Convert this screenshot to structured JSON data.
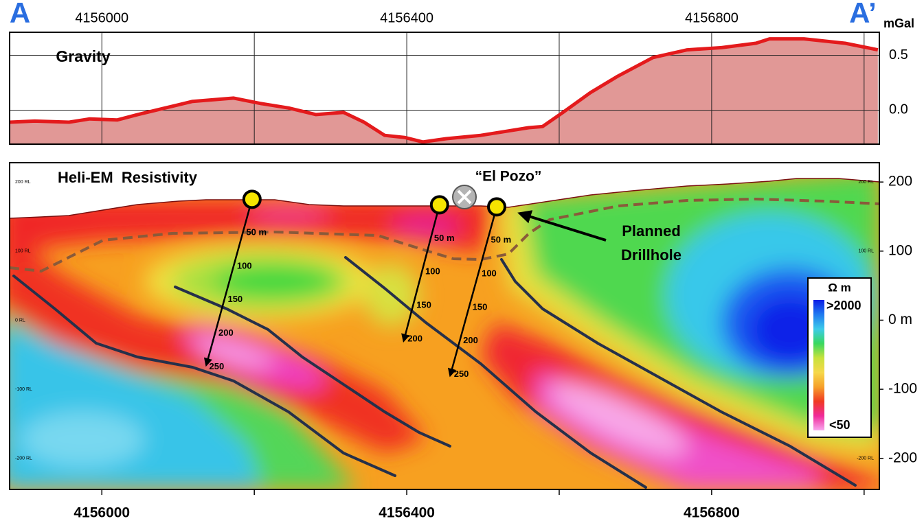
{
  "chart_data": [
    {
      "type": "area",
      "label": "Gravity",
      "start_label": "A",
      "end_label": "A’",
      "unit": "mGal",
      "x": [
        4155879,
        4155912,
        4155957,
        4155984,
        4156020,
        4156047,
        4156083,
        4156119,
        4156173,
        4156209,
        4156245,
        4156281,
        4156317,
        4156344,
        4156371,
        4156398,
        4156421,
        4156452,
        4156497,
        4156533,
        4156560,
        4156578,
        4156605,
        4156641,
        4156677,
        4156723,
        4156768,
        4156813,
        4156858,
        4156876,
        4156921,
        4156975,
        4157018
      ],
      "values": [
        -0.11,
        -0.1,
        -0.11,
        -0.08,
        -0.09,
        -0.04,
        0.02,
        0.08,
        0.11,
        0.06,
        0.02,
        -0.04,
        -0.02,
        -0.11,
        -0.23,
        -0.25,
        -0.29,
        -0.26,
        -0.23,
        -0.19,
        -0.16,
        -0.15,
        -0.02,
        0.16,
        0.31,
        0.48,
        0.55,
        0.57,
        0.61,
        0.65,
        0.65,
        0.61,
        0.55
      ],
      "color": "#e41a1c",
      "fill_color": "#e19896",
      "xlim": [
        4155879,
        4157020
      ],
      "xticks": [
        4156000,
        4156400,
        4156800
      ],
      "xgrid": [
        4156200,
        4156600,
        4157000
      ],
      "ylim": [
        -0.31,
        0.71
      ],
      "yticks": [
        0.5,
        {
          "value": 0,
          "label": "0.0"
        }
      ],
      "grid": true
    },
    {
      "type": "section",
      "title": "Heli-EM  Resistivity",
      "site_label": "“El Pozo”",
      "callout": [
        "Planned",
        "Drillhole"
      ],
      "xlim": [
        4155879,
        4157020
      ],
      "xticks": [
        4156000,
        4156400,
        4156800
      ],
      "xgrid": [
        4156200,
        4156600,
        4157000
      ],
      "ylim": [
        -245,
        228
      ],
      "yticks": [
        200,
        100,
        {
          "value": 0,
          "label": "0 m"
        },
        -100,
        -200
      ],
      "rl_ticks_left": [
        {
          "value": 200,
          "label": "200 RL"
        },
        {
          "value": 100,
          "label": "100 RL"
        },
        {
          "value": 0,
          "label": "0 RL"
        },
        {
          "value": -100,
          "label": "-100 RL"
        },
        {
          "value": -200,
          "label": "-200 RL"
        }
      ],
      "rl_ticks_right": [
        {
          "value": 200,
          "label": "200 RL"
        },
        {
          "value": 100,
          "label": "100 RL"
        },
        {
          "value": -200,
          "label": "-200 RL"
        }
      ],
      "holes": [
        {
          "collar": [
            4156197,
            175
          ],
          "end": [
            4156137,
            -65
          ],
          "depth_labels": [
            {
              "value": 50,
              "label": "50 m"
            },
            100,
            150,
            200,
            250
          ]
        },
        {
          "collar": [
            4156443,
            167
          ],
          "end": [
            4156396,
            -30
          ],
          "depth_labels": [
            {
              "value": 50,
              "label": "50 m"
            },
            100,
            150,
            200
          ]
        },
        {
          "collar": [
            4156518,
            164
          ],
          "end": [
            4156457,
            -80
          ],
          "depth_labels": [
            {
              "value": 50,
              "label": "50 m"
            },
            100,
            150,
            200,
            250
          ]
        }
      ],
      "hole_color": "#f5e400",
      "legend": {
        "title": "Ω m",
        "max_label": ">2000",
        "min_label": "<50",
        "colors": [
          "#0a1ee6",
          "#1f7af0",
          "#3ccbea",
          "#38d860",
          "#c8e23c",
          "#f6d84a",
          "#f6a02a",
          "#f03a22",
          "#f02a9a",
          "#f8a8ee"
        ]
      }
    }
  ]
}
